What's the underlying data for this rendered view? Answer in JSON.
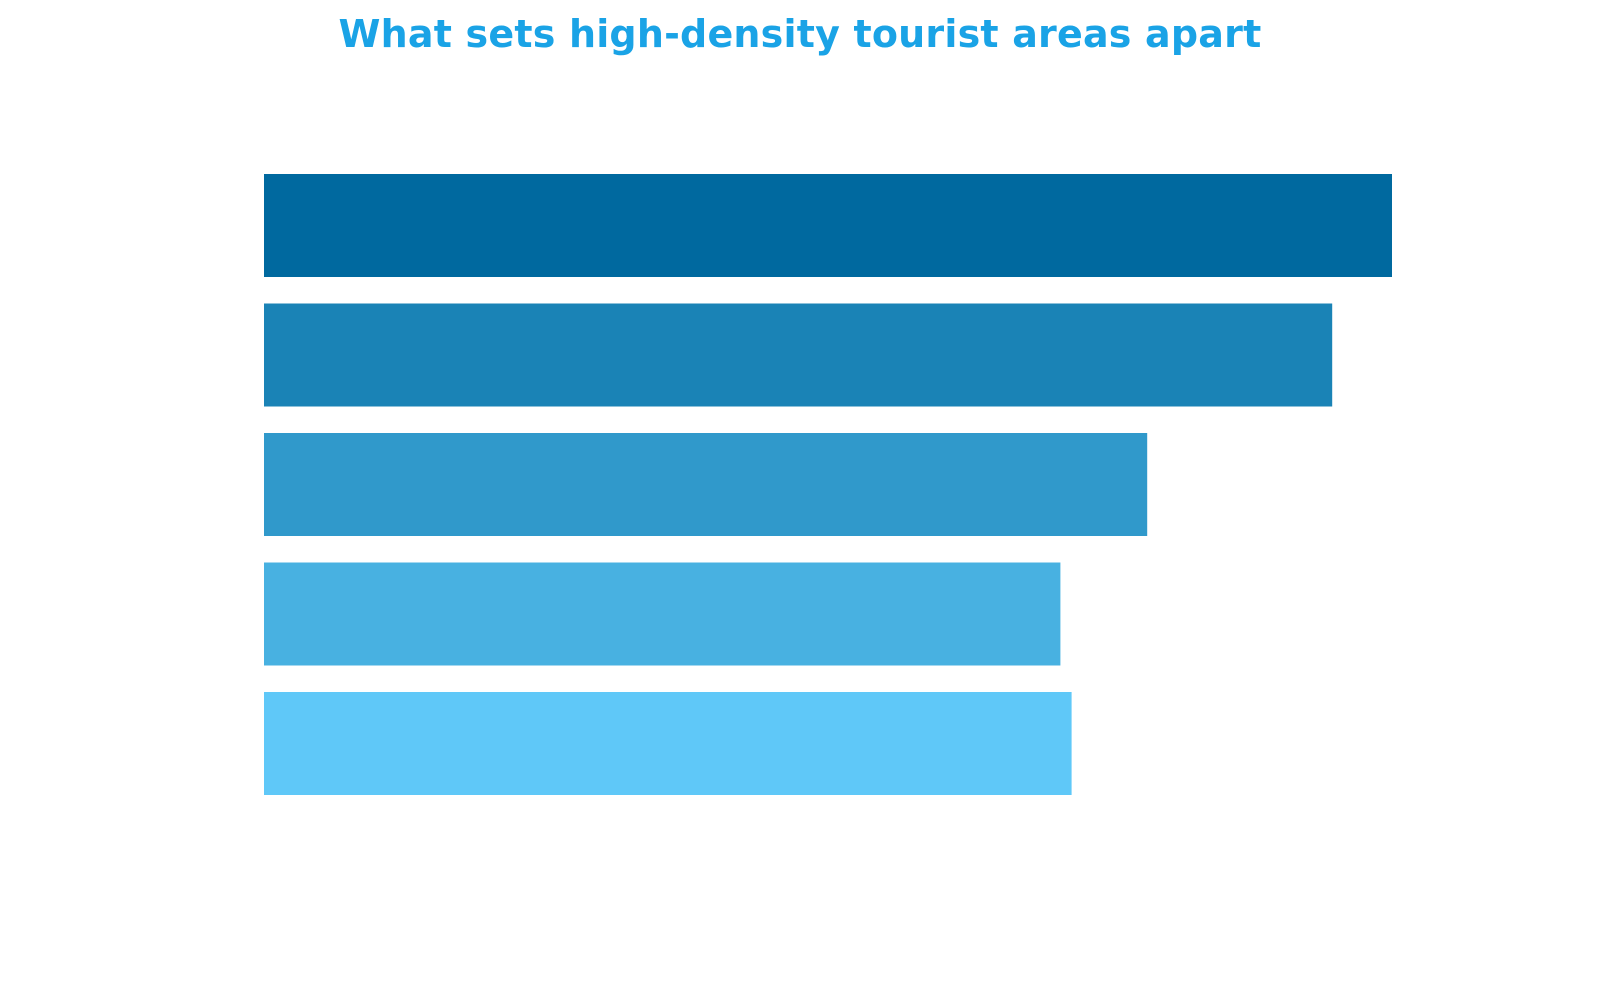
{
  "chart_data": {
    "type": "bar",
    "orientation": "horizontal",
    "title": "What sets high-density tourist areas apart",
    "xlabel": "",
    "ylabel": "",
    "categories": [
      "",
      "",
      "",
      "",
      ""
    ],
    "values": [
      100,
      94.7,
      78.3,
      70.6,
      71.6
    ],
    "xlim": [
      0,
      100
    ],
    "grid": false,
    "legend": "none",
    "colors": [
      "#00699f",
      "#1a83b6",
      "#3099cb",
      "#48b1e1",
      "#5fc8f8"
    ]
  },
  "theme": {
    "title_color": "#1aa3e6",
    "background": "#ffffff"
  }
}
